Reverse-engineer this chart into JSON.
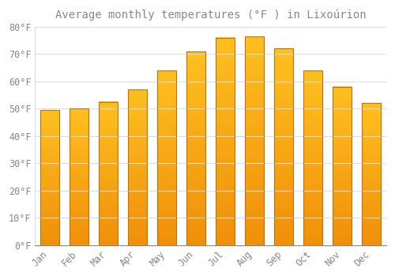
{
  "title": "Average monthly temperatures (°F ) in Lixoúrion",
  "months": [
    "Jan",
    "Feb",
    "Mar",
    "Apr",
    "May",
    "Jun",
    "Jul",
    "Aug",
    "Sep",
    "Oct",
    "Nov",
    "Dec"
  ],
  "values": [
    49.5,
    50.0,
    52.5,
    57.0,
    64.0,
    71.0,
    76.0,
    76.5,
    72.0,
    64.0,
    58.0,
    52.0
  ],
  "bar_color_top": "#FFC020",
  "bar_color_bottom": "#F0900A",
  "bar_edge_color": "#C87000",
  "background_color": "#FFFFFF",
  "grid_color": "#DDDDDD",
  "text_color": "#888888",
  "ylim": [
    0,
    80
  ],
  "yticks": [
    0,
    10,
    20,
    30,
    40,
    50,
    60,
    70,
    80
  ],
  "ytick_labels": [
    "0°F",
    "10°F",
    "20°F",
    "30°F",
    "40°F",
    "50°F",
    "60°F",
    "70°F",
    "80°F"
  ],
  "title_fontsize": 10,
  "tick_fontsize": 8.5,
  "bar_width": 0.65
}
